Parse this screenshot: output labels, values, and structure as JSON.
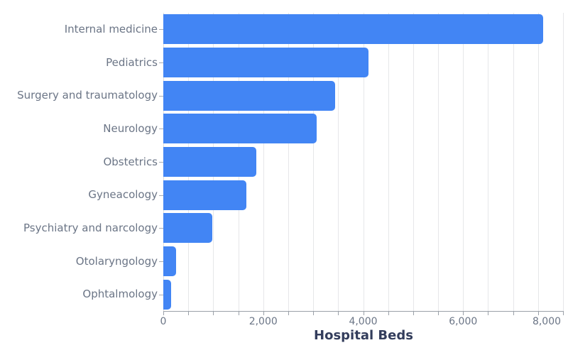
{
  "chart_data": {
    "type": "bar",
    "orientation": "horizontal",
    "title": "",
    "xlabel": "Hospital Beds",
    "ylabel": "",
    "categories": [
      "Internal medicine",
      "Pediatrics",
      "Surgery and traumatology",
      "Neurology",
      "Obstetrics",
      "Gyneacology",
      "Psychiatry and narcology",
      "Otolaryngology",
      "Ophtalmology"
    ],
    "values": [
      7600,
      4100,
      3440,
      3070,
      1860,
      1660,
      980,
      250,
      160
    ],
    "xlim": [
      0,
      8000
    ],
    "x_major_ticks": [
      0,
      2000,
      4000,
      6000,
      8000
    ],
    "x_tick_labels": [
      "0",
      "2,000",
      "4,000",
      "6,000",
      "8,000"
    ],
    "x_minor_tick_step": 500,
    "grid": true,
    "legend": false,
    "colors": {
      "bar": "#4285f4",
      "gridline": "#e6e7e9",
      "axis_line": "#9aa0a8",
      "tick_label": "#6b7586",
      "category_label": "#6b7586",
      "axis_title": "#333d5c",
      "background": "#ffffff"
    }
  }
}
